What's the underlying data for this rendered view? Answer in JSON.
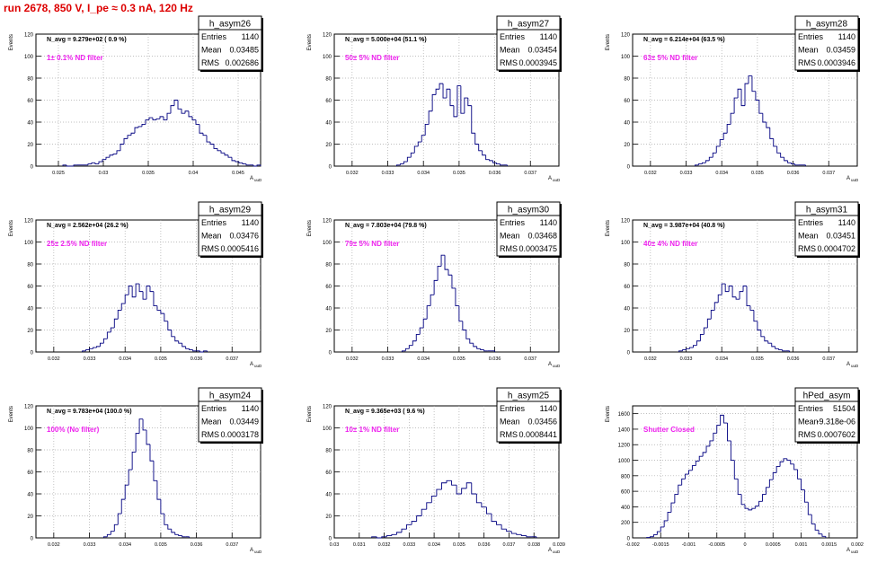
{
  "page_title": "run 2678,   850 V, I_pe ≈ 0.3 nA, 120 Hz",
  "chart_data": [
    {
      "type": "histogram",
      "name": "h_asym26",
      "entries": "1140",
      "mean": "0.03485",
      "rms": "0.002686",
      "navg": "N_avg = 9.279e+02 ( 0.9 %)",
      "filter": "1± 0.1% ND filter",
      "ylabel": "Events",
      "xlabel": "A_uuD",
      "xlim": [
        0.0225,
        0.0475
      ],
      "ylim": [
        0,
        120
      ],
      "xticks": [
        0.025,
        0.03,
        0.035,
        0.04,
        0.045
      ],
      "xtick_labels": [
        "0.025",
        "0.03",
        "0.035",
        "0.04",
        "0.045"
      ],
      "yticks": [
        0,
        20,
        40,
        60,
        80,
        100,
        120
      ],
      "bins_x0": 0.0255,
      "bin_width": 0.0004,
      "values": [
        1,
        0,
        0,
        1,
        1,
        1,
        1,
        2,
        3,
        2,
        4,
        6,
        8,
        10,
        11,
        14,
        20,
        25,
        28,
        30,
        35,
        36,
        38,
        42,
        44,
        42,
        43,
        45,
        42,
        48,
        55,
        60,
        52,
        48,
        50,
        45,
        42,
        38,
        30,
        28,
        22,
        20,
        16,
        14,
        12,
        10,
        8,
        5,
        4,
        3,
        2,
        1,
        1,
        0,
        1
      ]
    },
    {
      "type": "histogram",
      "name": "h_asym27",
      "entries": "1140",
      "mean": "0.03454",
      "rms": "0.0003945",
      "navg": "N_avg = 5.000e+04 (51.1 %)",
      "filter": "50± 5% ND filter",
      "ylabel": "Events",
      "xlabel": "A_uuD",
      "xlim": [
        0.0315,
        0.0378
      ],
      "ylim": [
        0,
        120
      ],
      "xticks": [
        0.032,
        0.033,
        0.034,
        0.035,
        0.036,
        0.037
      ],
      "xtick_labels": [
        "0.032",
        "0.033",
        "0.034",
        "0.035",
        "0.036",
        "0.037"
      ],
      "yticks": [
        0,
        20,
        40,
        60,
        80,
        100,
        120
      ],
      "bins_x0": 0.03325,
      "bin_width": 0.0001,
      "values": [
        1,
        2,
        4,
        8,
        12,
        18,
        22,
        28,
        38,
        50,
        65,
        70,
        75,
        62,
        70,
        55,
        45,
        73,
        48,
        62,
        55,
        30,
        20,
        14,
        10,
        6,
        5,
        3,
        2,
        1,
        1
      ]
    },
    {
      "type": "histogram",
      "name": "h_asym28",
      "entries": "1140",
      "mean": "0.03459",
      "rms": "0.0003946",
      "navg": "N_avg = 6.214e+04 (63.5 %)",
      "filter": "63± 5% ND filter",
      "ylabel": "Events",
      "xlabel": "A_uuD",
      "xlim": [
        0.0315,
        0.0378
      ],
      "ylim": [
        0,
        120
      ],
      "xticks": [
        0.032,
        0.033,
        0.034,
        0.035,
        0.036,
        0.037
      ],
      "xtick_labels": [
        "0.032",
        "0.033",
        "0.034",
        "0.035",
        "0.036",
        "0.037"
      ],
      "yticks": [
        0,
        20,
        40,
        60,
        80,
        100,
        120
      ],
      "bins_x0": 0.03325,
      "bin_width": 0.0001,
      "values": [
        1,
        2,
        3,
        5,
        8,
        12,
        18,
        24,
        30,
        38,
        48,
        62,
        70,
        55,
        75,
        82,
        68,
        60,
        48,
        40,
        35,
        25,
        18,
        12,
        8,
        5,
        3,
        2,
        1,
        1,
        1
      ]
    },
    {
      "type": "histogram",
      "name": "h_asym29",
      "entries": "1140",
      "mean": "0.03476",
      "rms": "0.0005416",
      "navg": "N_avg = 2.562e+04 (26.2 %)",
      "filter": "25± 2.5% ND filter",
      "ylabel": "Events",
      "xlabel": "A_uuD",
      "xlim": [
        0.0315,
        0.0378
      ],
      "ylim": [
        0,
        120
      ],
      "xticks": [
        0.032,
        0.033,
        0.034,
        0.035,
        0.036,
        0.037
      ],
      "xtick_labels": [
        "0.032",
        "0.033",
        "0.034",
        "0.035",
        "0.036",
        "0.037"
      ],
      "yticks": [
        0,
        20,
        40,
        60,
        80,
        100,
        120
      ],
      "bins_x0": 0.0328,
      "bin_width": 0.0001,
      "values": [
        1,
        2,
        3,
        4,
        5,
        8,
        12,
        18,
        22,
        30,
        38,
        44,
        52,
        60,
        50,
        62,
        55,
        48,
        60,
        55,
        42,
        38,
        35,
        28,
        20,
        14,
        10,
        8,
        5,
        3,
        2,
        1,
        1,
        0,
        1
      ]
    },
    {
      "type": "histogram",
      "name": "h_asym30",
      "entries": "1140",
      "mean": "0.03468",
      "rms": "0.0003475",
      "navg": "N_avg = 7.803e+04 (79.8 %)",
      "filter": "79± 5% ND filter",
      "ylabel": "Events",
      "xlabel": "A_uuD",
      "xlim": [
        0.0315,
        0.0378
      ],
      "ylim": [
        0,
        120
      ],
      "xticks": [
        0.032,
        0.033,
        0.034,
        0.035,
        0.036,
        0.037
      ],
      "xtick_labels": [
        "0.032",
        "0.033",
        "0.034",
        "0.035",
        "0.036",
        "0.037"
      ],
      "yticks": [
        0,
        20,
        40,
        60,
        80,
        100,
        120
      ],
      "bins_x0": 0.0334,
      "bin_width": 0.0001,
      "values": [
        1,
        3,
        6,
        10,
        16,
        22,
        30,
        42,
        52,
        65,
        78,
        88,
        75,
        70,
        58,
        42,
        28,
        20,
        12,
        8,
        5,
        3,
        2,
        1,
        1,
        1
      ]
    },
    {
      "type": "histogram",
      "name": "h_asym31",
      "entries": "1140",
      "mean": "0.03451",
      "rms": "0.0004702",
      "navg": "N_avg = 3.987e+04 (40.8 %)",
      "filter": "40± 4% ND filter",
      "ylabel": "Events",
      "xlabel": "A_uuD",
      "xlim": [
        0.0315,
        0.0378
      ],
      "ylim": [
        0,
        120
      ],
      "xticks": [
        0.032,
        0.033,
        0.034,
        0.035,
        0.036,
        0.037
      ],
      "xtick_labels": [
        "0.032",
        "0.033",
        "0.034",
        "0.035",
        "0.036",
        "0.037"
      ],
      "yticks": [
        0,
        20,
        40,
        60,
        80,
        100,
        120
      ],
      "bins_x0": 0.0328,
      "bin_width": 0.0001,
      "values": [
        1,
        2,
        3,
        4,
        6,
        10,
        16,
        22,
        30,
        38,
        45,
        52,
        62,
        55,
        60,
        50,
        48,
        55,
        60,
        42,
        38,
        28,
        20,
        14,
        10,
        8,
        5,
        3,
        2,
        1,
        1
      ]
    },
    {
      "type": "histogram",
      "name": "h_asym24",
      "entries": "1140",
      "mean": "0.03449",
      "rms": "0.0003178",
      "navg": "N_avg = 9.783e+04 (100.0 %)",
      "filter": "100% (No filter)",
      "ylabel": "Events",
      "xlabel": "A_uuD",
      "xlim": [
        0.0315,
        0.0378
      ],
      "ylim": [
        0,
        120
      ],
      "xticks": [
        0.032,
        0.033,
        0.034,
        0.035,
        0.036,
        0.037
      ],
      "xtick_labels": [
        "0.032",
        "0.033",
        "0.034",
        "0.035",
        "0.036",
        "0.037"
      ],
      "yticks": [
        0,
        20,
        40,
        60,
        80,
        100,
        120
      ],
      "bins_x0": 0.0334,
      "bin_width": 0.0001,
      "values": [
        1,
        3,
        6,
        12,
        22,
        35,
        48,
        62,
        78,
        95,
        108,
        98,
        85,
        70,
        52,
        35,
        22,
        12,
        8,
        5,
        3,
        2,
        1,
        1
      ]
    },
    {
      "type": "histogram",
      "name": "h_asym25",
      "entries": "1140",
      "mean": "0.03456",
      "rms": "0.0008441",
      "navg": "N_avg = 9.365e+03 ( 9.6 %)",
      "filter": "10± 1% ND filter",
      "ylabel": "Events",
      "xlabel": "A_uuD",
      "xlim": [
        0.03,
        0.039
      ],
      "ylim": [
        0,
        120
      ],
      "xticks": [
        0.03,
        0.031,
        0.032,
        0.033,
        0.034,
        0.035,
        0.036,
        0.037,
        0.038,
        0.039
      ],
      "xtick_labels": [
        "0.03",
        "0.031",
        "0.032",
        "0.033",
        "0.034",
        "0.035",
        "0.036",
        "0.037",
        "0.038",
        "0.039"
      ],
      "yticks": [
        0,
        20,
        40,
        60,
        80,
        100,
        120
      ],
      "bins_x0": 0.0315,
      "bin_width": 0.0002,
      "values": [
        1,
        0,
        1,
        2,
        3,
        5,
        8,
        12,
        15,
        20,
        26,
        32,
        38,
        44,
        50,
        52,
        48,
        40,
        45,
        50,
        40,
        32,
        28,
        22,
        15,
        12,
        8,
        6,
        4,
        3,
        2,
        1,
        1
      ]
    },
    {
      "type": "histogram",
      "name": "hPed_asym",
      "entries": "51504",
      "mean": "-9.318e-06",
      "rms": "0.0007602",
      "navg": "",
      "filter": "Shutter Closed",
      "ylabel": "Events",
      "xlabel": "A_uuD",
      "xlim": [
        -0.002,
        0.002
      ],
      "ylim": [
        0,
        1700
      ],
      "xticks": [
        -0.002,
        -0.0015,
        -0.001,
        -0.0005,
        0,
        0.0005,
        0.001,
        0.0015,
        0.002
      ],
      "xtick_labels": [
        "-0.002",
        "-0.0015",
        "-0.001",
        "-0.0005",
        "0",
        "0.0005",
        "0.001",
        "0.0015",
        "0.002"
      ],
      "yticks": [
        0,
        200,
        400,
        600,
        800,
        1000,
        1200,
        1400,
        1600
      ],
      "bins_x0": -0.00175,
      "bin_width": 6.25e-05,
      "values": [
        5,
        15,
        40,
        80,
        140,
        220,
        330,
        450,
        560,
        680,
        760,
        820,
        870,
        930,
        990,
        1050,
        1100,
        1180,
        1250,
        1350,
        1450,
        1580,
        1480,
        1250,
        1000,
        760,
        560,
        430,
        380,
        360,
        380,
        410,
        470,
        560,
        650,
        750,
        840,
        920,
        980,
        1020,
        1000,
        950,
        880,
        760,
        620,
        460,
        300,
        180,
        100,
        50,
        20
      ]
    }
  ]
}
